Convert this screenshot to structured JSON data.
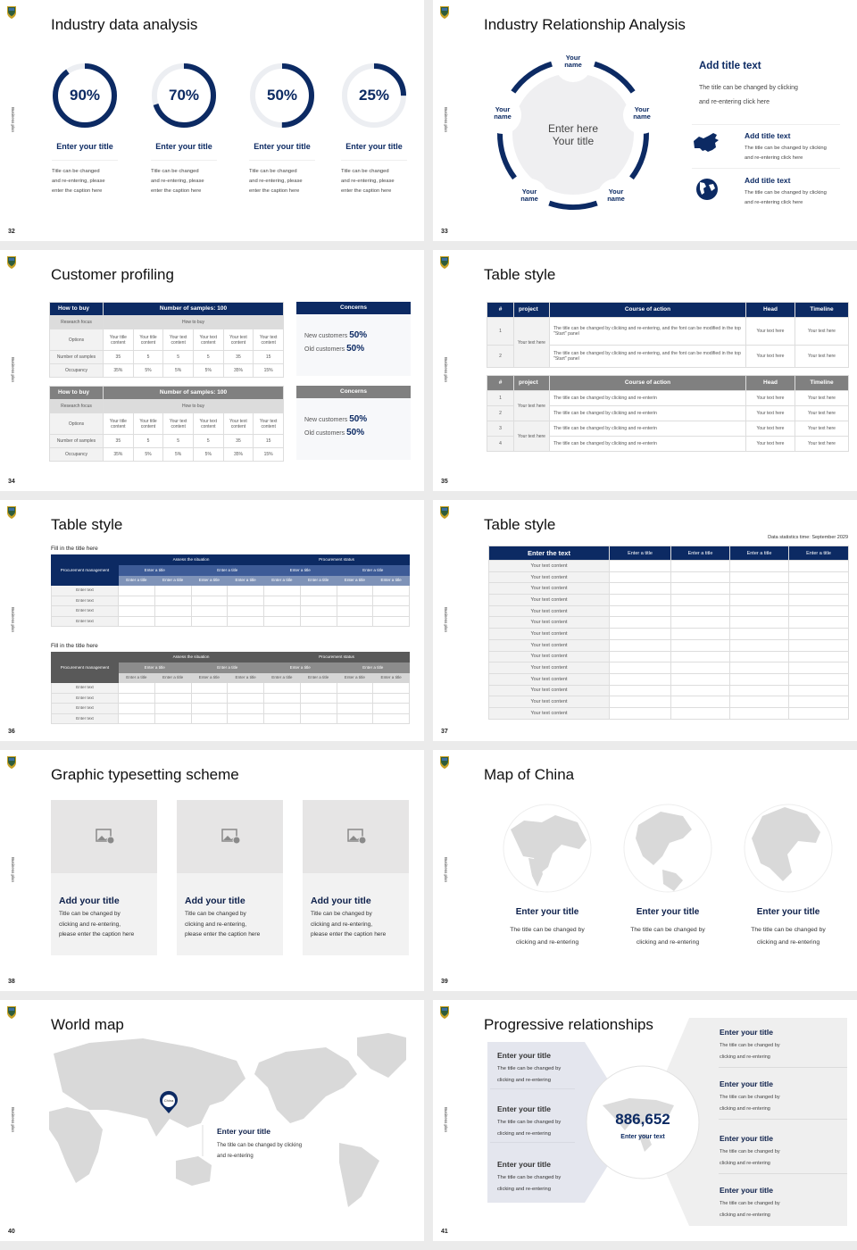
{
  "deck": {
    "side_label": "Business plan",
    "colors": {
      "navy": "#0c2a63",
      "gray_header": "#808080",
      "panel": "#f2f2f2",
      "map": "#d9d9d9"
    }
  },
  "slides": [
    {
      "page": "32",
      "title": "Industry data analysis",
      "gauges": [
        {
          "label": "90%",
          "value": 90,
          "title": "Enter your title",
          "caption": [
            "Title can be changed",
            "and re-entering, please",
            "enter the caption here"
          ]
        },
        {
          "label": "70%",
          "value": 70,
          "title": "Enter your title",
          "caption": [
            "Title can be changed",
            "and re-entering, please",
            "enter the caption here"
          ]
        },
        {
          "label": "50%",
          "value": 50,
          "title": "Enter your title",
          "caption": [
            "Title can be changed",
            "and re-entering, please",
            "enter the caption here"
          ]
        },
        {
          "label": "25%",
          "value": 25,
          "title": "Enter your title",
          "caption": [
            "Title can be changed",
            "and re-entering, please",
            "enter the caption here"
          ]
        }
      ]
    },
    {
      "page": "33",
      "title": "Industry Relationship Analysis",
      "center": [
        "Enter here",
        "Your title"
      ],
      "nodes": [
        [
          "Your",
          "name"
        ],
        [
          "Your",
          "name"
        ],
        [
          "Your",
          "name"
        ],
        [
          "Your",
          "name"
        ],
        [
          "Your",
          "name"
        ]
      ],
      "heading": "Add title text",
      "heading_desc": [
        "The title can be changed by clicking",
        "and re-entering click here"
      ],
      "items": [
        {
          "icon": "china-map-icon",
          "title": "Add title text",
          "desc": [
            "The title can be changed by clicking",
            "and re-entering click here"
          ]
        },
        {
          "icon": "globe-icon",
          "title": "Add title text",
          "desc": [
            "The title can be changed by clicking",
            "and re-entering click here"
          ]
        }
      ]
    },
    {
      "page": "34",
      "title": "Customer profiling",
      "tables": [
        {
          "header": [
            "How to buy",
            "Number of samples: 100"
          ],
          "subheader": [
            "Research focus",
            "How to buy"
          ],
          "rows": [
            {
              "label": "Options",
              "cells": [
                "Your title content",
                "Your title content",
                "Your text content",
                "Your text content",
                "Your text content",
                "Your text content"
              ]
            },
            {
              "label": "Number of samples",
              "cells": [
                "35",
                "5",
                "5",
                "5",
                "35",
                "15"
              ]
            },
            {
              "label": "Occupancy",
              "cells": [
                "35%",
                "5%",
                "5%",
                "5%",
                "35%",
                "15%"
              ]
            }
          ],
          "concerns": {
            "title": "Concerns",
            "lines": [
              {
                "label": "New customers",
                "value": "50%"
              },
              {
                "label": "Old customers",
                "value": "50%"
              }
            ]
          }
        },
        {
          "header": [
            "How to buy",
            "Number of samples: 100"
          ],
          "subheader": [
            "Research focus",
            "How to buy"
          ],
          "rows": [
            {
              "label": "Options",
              "cells": [
                "Your title content",
                "Your title content",
                "Your text content",
                "Your text content",
                "Your text content",
                "Your text content"
              ]
            },
            {
              "label": "Number of samples",
              "cells": [
                "35",
                "5",
                "5",
                "5",
                "35",
                "15"
              ]
            },
            {
              "label": "Occupancy",
              "cells": [
                "35%",
                "5%",
                "5%",
                "5%",
                "35%",
                "15%"
              ]
            }
          ],
          "concerns": {
            "title": "Concerns",
            "lines": [
              {
                "label": "New customers",
                "value": "50%"
              },
              {
                "label": "Old customers",
                "value": "50%"
              }
            ]
          }
        }
      ]
    },
    {
      "page": "35",
      "title": "Table style",
      "columns": [
        "#",
        "project",
        "Course of action",
        "Head",
        "Timeline"
      ],
      "table1": {
        "project": "Your text here",
        "rows": [
          {
            "n": "1",
            "action": "The title can be changed by clicking and re-entering, and the font can be modified in the top \"Start\" panel",
            "head": "Your text here",
            "timeline": "Your text here"
          },
          {
            "n": "2",
            "action": "The title can be changed by clicking and re-entering, and the font can be modified in the top \"Start\" panel",
            "head": "Your text here",
            "timeline": "Your text here"
          }
        ]
      },
      "table2": {
        "projects": [
          "Your text here",
          "Your text here"
        ],
        "rows": [
          {
            "n": "1",
            "action": "The title can be changed by clicking and re-enterin",
            "head": "Your text here",
            "timeline": "Your text here"
          },
          {
            "n": "2",
            "action": "The title can be changed by clicking and re-enterin",
            "head": "Your text here",
            "timeline": "Your text here"
          },
          {
            "n": "3",
            "action": "The title can be changed by clicking and re-enterin",
            "head": "Your text here",
            "timeline": "Your text here"
          },
          {
            "n": "4",
            "action": "The title can be changed by clicking and re-enterin",
            "head": "Your text here",
            "timeline": "Your text here"
          }
        ]
      }
    },
    {
      "page": "36",
      "title": "Table style",
      "tables": [
        {
          "label": "Fill in the title here",
          "corner": "Procurement management",
          "groups": [
            "Assess the situation",
            "Procurement status"
          ],
          "subgroups": [
            "Enter a title",
            "Enter a title",
            "Enter a title",
            "Enter a title"
          ],
          "columns": [
            "Enter a title",
            "Enter a title",
            "Enter a title",
            "Enter a title",
            "Enter a title",
            "Enter a title",
            "Enter a title",
            "Enter a title"
          ],
          "rows": [
            "Enter text",
            "Enter text",
            "Enter text",
            "Enter text"
          ]
        },
        {
          "label": "Fill in the title here",
          "corner": "Procurement management",
          "groups": [
            "Assess the situation",
            "Procurement status"
          ],
          "subgroups": [
            "Enter a title",
            "Enter a title",
            "Enter a title",
            "Enter a title"
          ],
          "columns": [
            "Enter a title",
            "Enter a title",
            "Enter a title",
            "Enter a title",
            "Enter a title",
            "Enter a title",
            "Enter a title",
            "Enter a title"
          ],
          "rows": [
            "Enter text",
            "Enter text",
            "Enter text",
            "Enter text"
          ]
        }
      ]
    },
    {
      "page": "37",
      "title": "Table style",
      "note": "Data statistics time: September 2029",
      "columns": [
        "Enter the text",
        "Enter a title",
        "Enter a title",
        "Enter a title",
        "Enter a title"
      ],
      "rows": [
        "Your text content",
        "Your text content",
        "Your text content",
        "Your text content",
        "Your text content",
        "Your text content",
        "Your text content",
        "Your text content",
        "Your text content",
        "Your text content",
        "Your text content",
        "Your text content",
        "Your text content",
        "Your text content"
      ]
    },
    {
      "page": "38",
      "title": "Graphic typesetting scheme",
      "cards": [
        {
          "title": "Add your title",
          "caption": [
            "Title can be changed by",
            "clicking and re-entering,",
            "please enter the caption here"
          ]
        },
        {
          "title": "Add your title",
          "caption": [
            "Title can be changed by",
            "clicking and re-entering,",
            "please enter the caption here"
          ]
        },
        {
          "title": "Add your title",
          "caption": [
            "Title can be changed by",
            "clicking and re-entering,",
            "please enter the caption here"
          ]
        }
      ]
    },
    {
      "page": "39",
      "title": "Map of China",
      "globes": [
        {
          "title": "Enter your title",
          "desc": [
            "The title can be changed by",
            "clicking and re-entering"
          ]
        },
        {
          "title": "Enter your title",
          "desc": [
            "The title can be changed by",
            "clicking and re-entering"
          ]
        },
        {
          "title": "Enter your title",
          "desc": [
            "The title can be changed by",
            "clicking and re-entering"
          ]
        }
      ]
    },
    {
      "page": "40",
      "title": "World map",
      "pin_label": "China",
      "callout_title": "Enter your title",
      "callout_desc": [
        "The title can be changed by clicking",
        "and re-entering"
      ]
    },
    {
      "page": "41",
      "title": "Progressive relationships",
      "number": "886,652",
      "number_caption": "Enter your text",
      "left_items": [
        {
          "title": "Enter your title",
          "desc": [
            "The title can be changed by",
            "clicking and re-entering"
          ]
        },
        {
          "title": "Enter your title",
          "desc": [
            "The title can be changed by",
            "clicking and re-entering"
          ]
        },
        {
          "title": "Enter your title",
          "desc": [
            "The title can be changed by",
            "clicking and re-entering"
          ]
        }
      ],
      "right_items": [
        {
          "title": "Enter your title",
          "desc": [
            "The title can be changed by",
            "clicking and re-entering"
          ]
        },
        {
          "title": "Enter your title",
          "desc": [
            "The title can be changed by",
            "clicking and re-entering"
          ]
        },
        {
          "title": "Enter your title",
          "desc": [
            "The title can be changed by",
            "clicking and re-entering"
          ]
        },
        {
          "title": "Enter your title",
          "desc": [
            "The title can be changed by",
            "clicking and re-entering"
          ]
        }
      ]
    }
  ]
}
